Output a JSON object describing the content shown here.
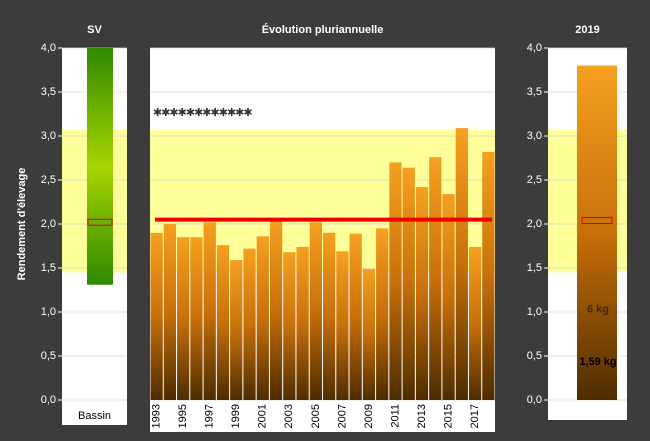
{
  "chart_data": [
    {
      "type": "range_bar",
      "title": "SV",
      "ylabel": "Rendement d'élevage",
      "categories": [
        "Bassin"
      ],
      "low": 1.31,
      "high": 4.0,
      "marker": 2.02,
      "band": [
        1.45,
        3.07
      ],
      "ylim": [
        0,
        4
      ],
      "yticks": [
        {
          "value": 0,
          "label": "0,0"
        },
        {
          "value": 0.5,
          "label": "0,5"
        },
        {
          "value": 1,
          "label": "1,0"
        },
        {
          "value": 1.5,
          "label": "1,5"
        },
        {
          "value": 2,
          "label": "2,0"
        },
        {
          "value": 2.5,
          "label": "2,5"
        },
        {
          "value": 3,
          "label": "3,0"
        },
        {
          "value": 3.5,
          "label": "3,5"
        },
        {
          "value": 4,
          "label": "4,0"
        }
      ],
      "grid": true
    },
    {
      "type": "bar",
      "title": "Évolution pluriannuelle",
      "categories": [
        "1993",
        null,
        "1995",
        null,
        "1997",
        null,
        "1999",
        null,
        "2001",
        null,
        "2003",
        null,
        "2005",
        null,
        "2007",
        null,
        "2009",
        null,
        "2011",
        null,
        "2013",
        null,
        "2015",
        null,
        "2017",
        null
      ],
      "values": [
        1.9,
        2.0,
        1.85,
        1.85,
        2.02,
        1.76,
        1.59,
        1.72,
        1.86,
        2.05,
        1.68,
        1.74,
        2.02,
        1.9,
        1.69,
        1.89,
        1.49,
        1.95,
        2.7,
        2.64,
        2.42,
        2.76,
        2.34,
        3.09,
        1.74,
        2.82
      ],
      "reference_line": 2.05,
      "annotation": "✱✱✱✱✱✱✱✱✱✱✱✱",
      "annotation_y": 3.26,
      "band": [
        1.45,
        3.07
      ],
      "ylim": [
        0,
        4
      ],
      "yticks": [
        0,
        0.5,
        1,
        1.5,
        2,
        2.5,
        3,
        3.5,
        4
      ],
      "grid": true
    },
    {
      "type": "single_bar",
      "title": "2019",
      "value": 3.8,
      "marker": 2.04,
      "annotations": [
        {
          "text": "6 kg",
          "y": 1.03
        },
        {
          "text": "1,59 kg",
          "y": 0.43
        }
      ],
      "band": [
        1.45,
        3.07
      ],
      "ylim": [
        0,
        4
      ],
      "yticks": [
        {
          "value": 0,
          "label": "0,0"
        },
        {
          "value": 0.5,
          "label": "0,5"
        },
        {
          "value": 1,
          "label": "1,0"
        },
        {
          "value": 1.5,
          "label": "1,5"
        },
        {
          "value": 2,
          "label": "2,0"
        },
        {
          "value": 2.5,
          "label": "2,5"
        },
        {
          "value": 3,
          "label": "3,0"
        },
        {
          "value": 3.5,
          "label": "3,5"
        },
        {
          "value": 4,
          "label": "4,0"
        }
      ],
      "grid": true
    }
  ]
}
